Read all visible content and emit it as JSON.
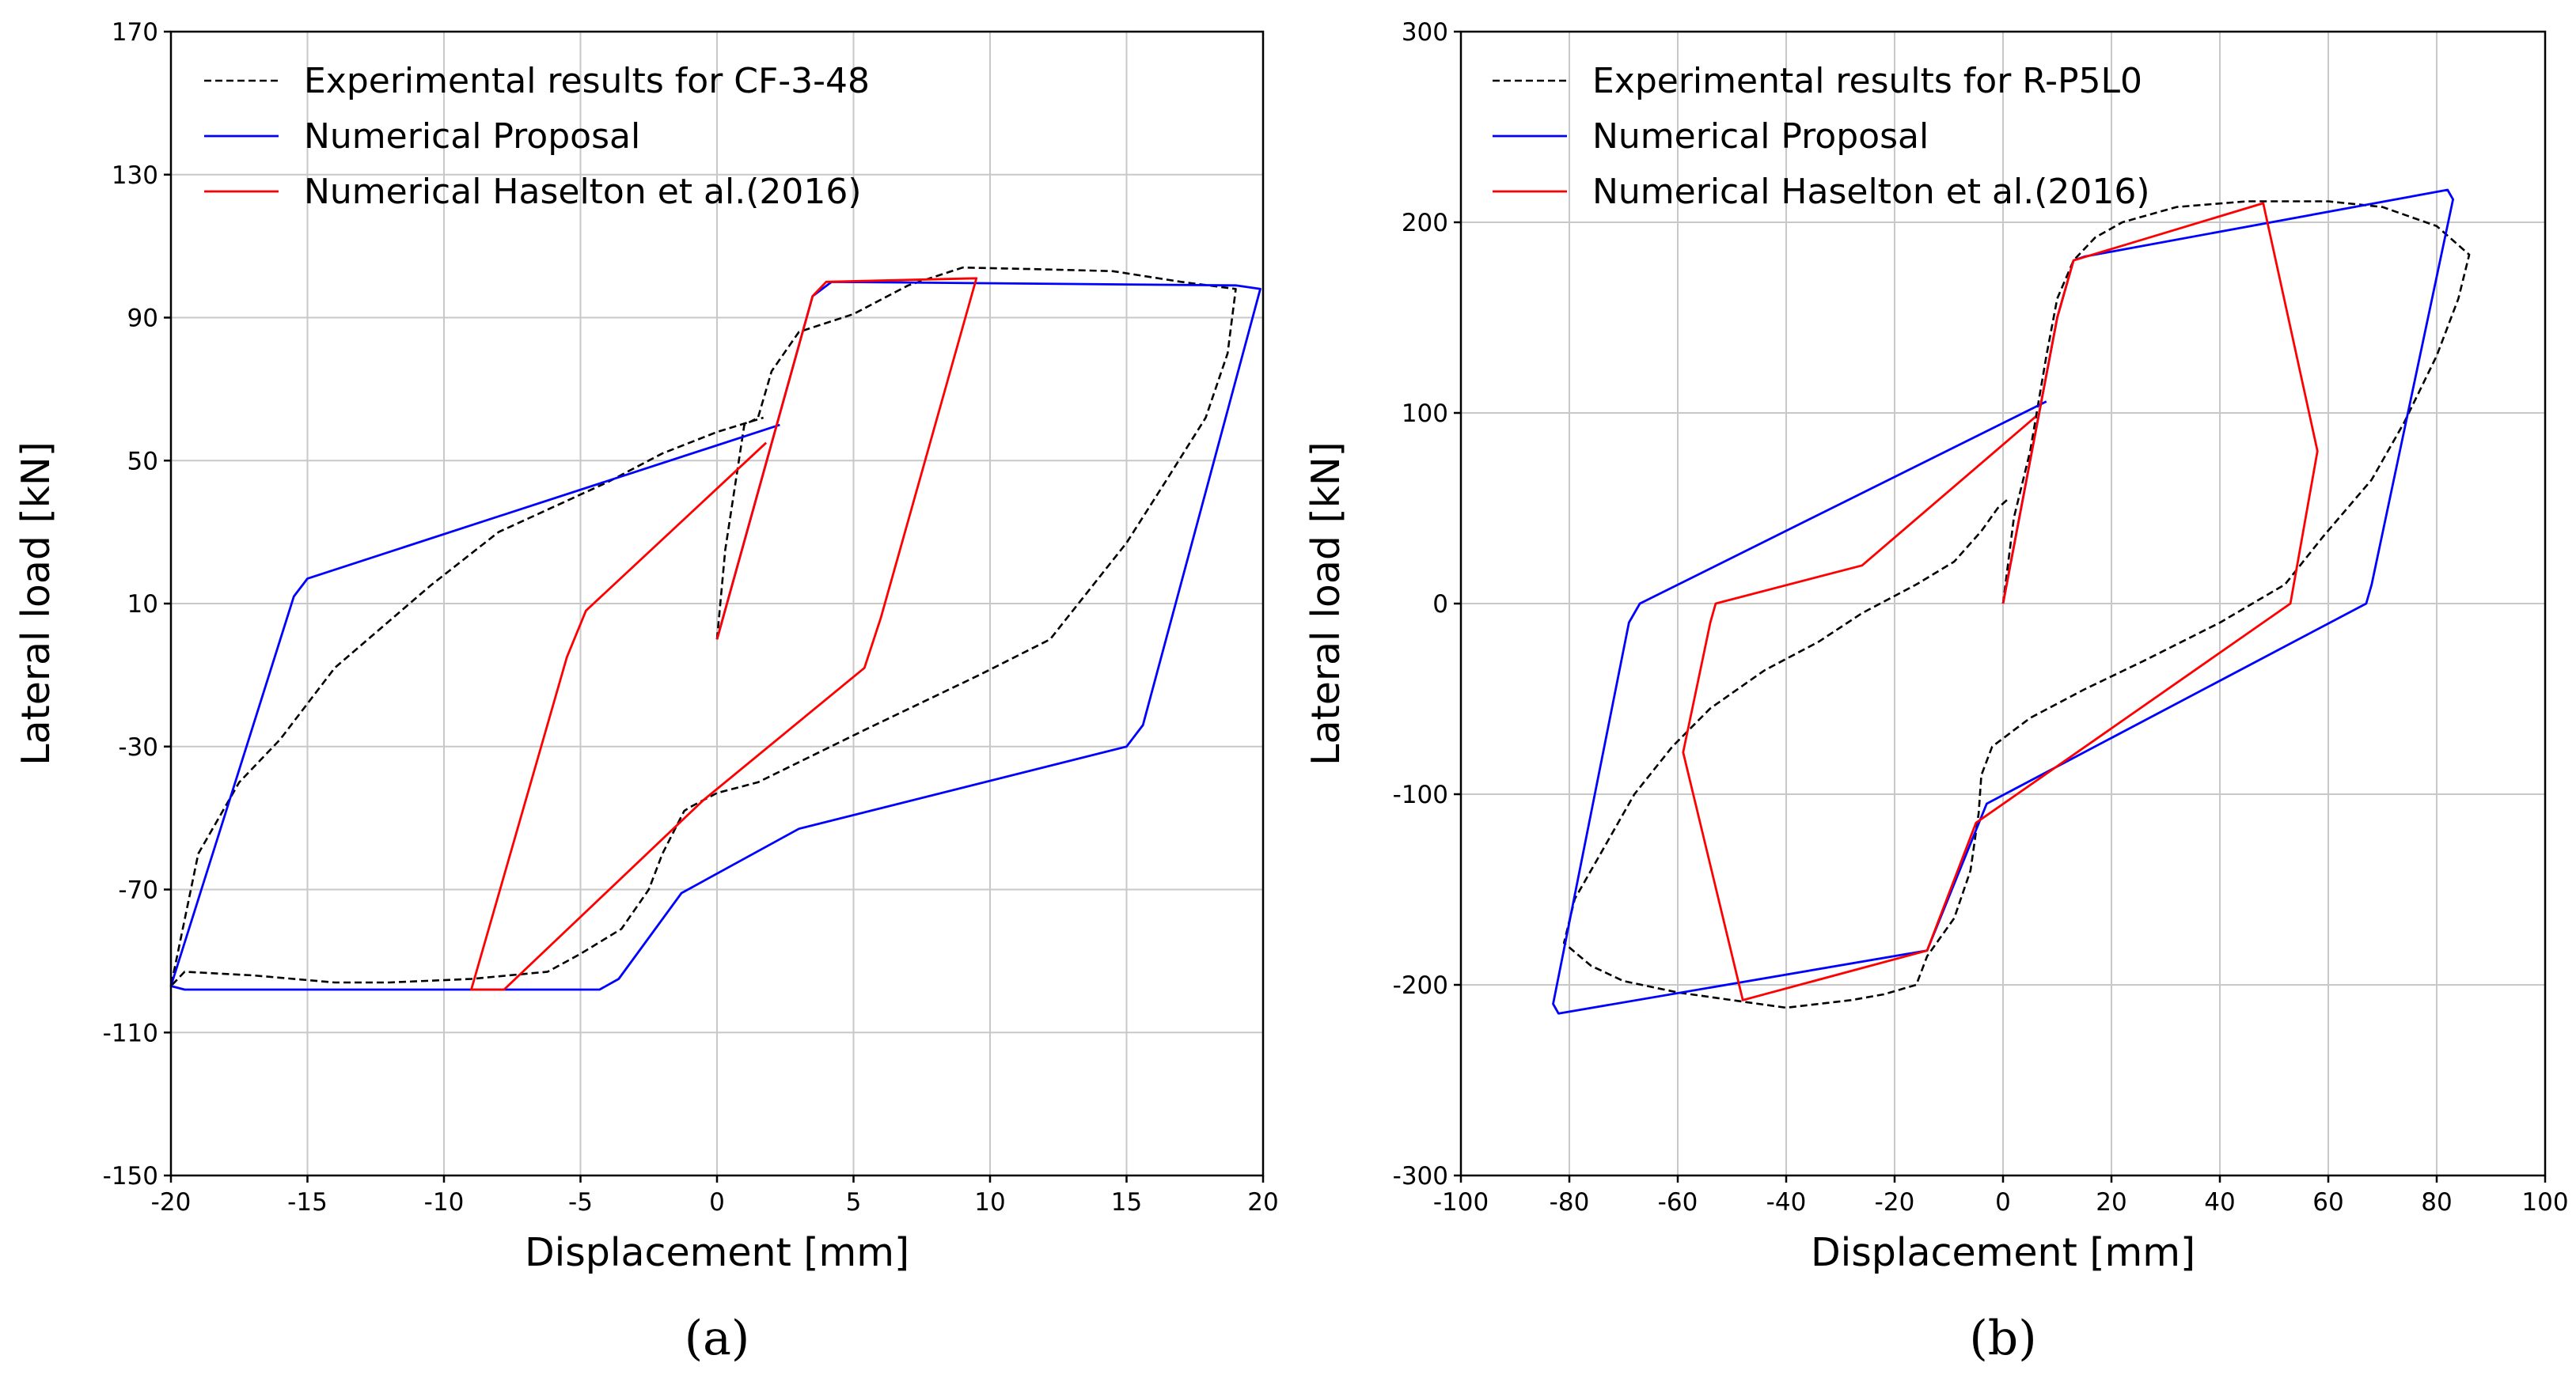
{
  "chart_data": [
    {
      "type": "line",
      "panel": "a",
      "caption": "(a)",
      "xlabel": "Displacement [mm]",
      "ylabel": "Lateral load [kN]",
      "xlim": [
        -20,
        20
      ],
      "ylim": [
        -150,
        170
      ],
      "xticks": [
        -20,
        -15,
        -10,
        -5,
        0,
        5,
        10,
        15,
        20
      ],
      "yticks": [
        -150,
        -110,
        -70,
        -30,
        10,
        50,
        90,
        130,
        170
      ],
      "xtick_labels": [
        "-20",
        "-15",
        "-10",
        "-5",
        "0",
        "5",
        "10",
        "15",
        "20"
      ],
      "ytick_labels": [
        "-150",
        "-110",
        "-70",
        "-30",
        "10",
        "50",
        "90",
        "130",
        "170"
      ],
      "grid": true,
      "legend_position": "top-left",
      "series": [
        {
          "name": "Experimental results for CF-3-48",
          "color": "#000000",
          "style": "dashed",
          "points": [
            [
              0,
              0
            ],
            [
              0.3,
              25
            ],
            [
              1,
              60
            ],
            [
              1.5,
              62
            ],
            [
              2,
              75
            ],
            [
              3,
              86
            ],
            [
              5,
              91
            ],
            [
              7,
              99
            ],
            [
              9,
              104
            ],
            [
              12,
              103.5
            ],
            [
              14.5,
              103
            ],
            [
              17,
              100
            ],
            [
              19,
              98
            ],
            [
              18.7,
              80
            ],
            [
              17.9,
              62
            ],
            [
              16.5,
              45
            ],
            [
              15,
              27
            ],
            [
              12.2,
              0
            ],
            [
              9.6,
              -10
            ],
            [
              5.5,
              -25
            ],
            [
              1.5,
              -40
            ],
            [
              0,
              -43
            ],
            [
              -1,
              -47
            ],
            [
              -1.2,
              -48
            ],
            [
              -2,
              -60
            ],
            [
              -2.5,
              -70
            ],
            [
              -3.5,
              -81
            ],
            [
              -5,
              -88
            ],
            [
              -6.2,
              -93
            ],
            [
              -9,
              -95
            ],
            [
              -12,
              -96
            ],
            [
              -14,
              -96
            ],
            [
              -17,
              -94
            ],
            [
              -19.5,
              -93
            ],
            [
              -20,
              -97
            ],
            [
              -19,
              -60
            ],
            [
              -17.5,
              -40
            ],
            [
              -16,
              -28
            ],
            [
              -14,
              -8
            ],
            [
              -10.5,
              15
            ],
            [
              -8,
              30
            ],
            [
              -4,
              44
            ],
            [
              -2,
              52
            ],
            [
              0,
              58
            ],
            [
              1.7,
              62
            ]
          ]
        },
        {
          "name": "Numerical Proposal",
          "color": "#0000ff",
          "style": "solid",
          "points": [
            [
              0,
              0
            ],
            [
              3.5,
              96
            ],
            [
              4.2,
              100
            ],
            [
              19,
              99
            ],
            [
              19.9,
              98
            ],
            [
              15.6,
              -24
            ],
            [
              15,
              -30
            ],
            [
              3,
              -53
            ],
            [
              -1.3,
              -71
            ],
            [
              -3.6,
              -95
            ],
            [
              -4.3,
              -98
            ],
            [
              -19.5,
              -98
            ],
            [
              -20,
              -97
            ],
            [
              -15.5,
              12
            ],
            [
              -15,
              17
            ],
            [
              2.3,
              60
            ]
          ]
        },
        {
          "name": "Numerical Haselton et al.(2016)",
          "color": "#ff0000",
          "style": "solid",
          "points": [
            [
              0,
              0
            ],
            [
              3.5,
              96
            ],
            [
              4,
              100
            ],
            [
              9.5,
              101
            ],
            [
              6,
              6
            ],
            [
              5.4,
              -8
            ],
            [
              -0.5,
              -45
            ],
            [
              -7.8,
              -98
            ],
            [
              -9,
              -98
            ],
            [
              -5.5,
              -5
            ],
            [
              -4.8,
              8
            ],
            [
              1.8,
              55
            ]
          ]
        }
      ]
    },
    {
      "type": "line",
      "panel": "b",
      "caption": "(b)",
      "xlabel": "Displacement [mm]",
      "ylabel": "Lateral load [kN]",
      "xlim": [
        -100,
        100
      ],
      "ylim": [
        -300,
        300
      ],
      "xticks": [
        -100,
        -80,
        -60,
        -40,
        -20,
        0,
        20,
        40,
        60,
        80,
        100
      ],
      "yticks": [
        -300,
        -200,
        -100,
        0,
        100,
        200,
        300
      ],
      "xtick_labels": [
        "-100",
        "-80",
        "-60",
        "-40",
        "-20",
        "0",
        "20",
        "40",
        "60",
        "80",
        "100"
      ],
      "ytick_labels": [
        "-300",
        "-200",
        "-100",
        "0",
        "100",
        "200",
        "300"
      ],
      "grid": true,
      "legend_position": "top-left",
      "series": [
        {
          "name": "Experimental results for R-P5L0",
          "color": "#000000",
          "style": "dashed",
          "points": [
            [
              0,
              0
            ],
            [
              2,
              45
            ],
            [
              5,
              80
            ],
            [
              8,
              130
            ],
            [
              10,
              160
            ],
            [
              13,
              180
            ],
            [
              17,
              192
            ],
            [
              22,
              200
            ],
            [
              32,
              208
            ],
            [
              45,
              211
            ],
            [
              60,
              211
            ],
            [
              70,
              208
            ],
            [
              80,
              198
            ],
            [
              86,
              183
            ],
            [
              84,
              160
            ],
            [
              80,
              130
            ],
            [
              74,
              95
            ],
            [
              68,
              65
            ],
            [
              59,
              35
            ],
            [
              52,
              10
            ],
            [
              40,
              -10
            ],
            [
              26,
              -30
            ],
            [
              15,
              -45
            ],
            [
              5,
              -60
            ],
            [
              -2,
              -75
            ],
            [
              -4,
              -90
            ],
            [
              -4.5,
              -110
            ],
            [
              -6,
              -140
            ],
            [
              -9,
              -165
            ],
            [
              -14,
              -185
            ],
            [
              -16,
              -200
            ],
            [
              -22,
              -205
            ],
            [
              -28,
              -208
            ],
            [
              -40,
              -212
            ],
            [
              -50,
              -208
            ],
            [
              -60,
              -204
            ],
            [
              -70,
              -198
            ],
            [
              -76,
              -190
            ],
            [
              -81,
              -178
            ],
            [
              -79,
              -155
            ],
            [
              -74,
              -130
            ],
            [
              -68,
              -100
            ],
            [
              -61,
              -75
            ],
            [
              -54,
              -55
            ],
            [
              -44,
              -35
            ],
            [
              -34,
              -20
            ],
            [
              -26,
              -5
            ],
            [
              -16,
              10
            ],
            [
              -9,
              22
            ],
            [
              -4,
              38
            ],
            [
              -1,
              50
            ],
            [
              1,
              55
            ]
          ]
        },
        {
          "name": "Numerical Proposal",
          "color": "#0000ff",
          "style": "solid",
          "points": [
            [
              0,
              0
            ],
            [
              10,
              150
            ],
            [
              13,
              180
            ],
            [
              15,
              182
            ],
            [
              82,
              217
            ],
            [
              83,
              212
            ],
            [
              68,
              10
            ],
            [
              67,
              0
            ],
            [
              -3,
              -105
            ],
            [
              -14,
              -182
            ],
            [
              -82,
              -215
            ],
            [
              -83,
              -210
            ],
            [
              -69,
              -10
            ],
            [
              -67,
              0
            ],
            [
              8,
              106
            ]
          ]
        },
        {
          "name": "Numerical Haselton et al.(2016)",
          "color": "#ff0000",
          "style": "solid",
          "points": [
            [
              0,
              0
            ],
            [
              10,
              150
            ],
            [
              13,
              180
            ],
            [
              48,
              210
            ],
            [
              58,
              80
            ],
            [
              53,
              0
            ],
            [
              -5,
              -115
            ],
            [
              -14,
              -182
            ],
            [
              -48,
              -208
            ],
            [
              -59,
              -78
            ],
            [
              -54,
              -10
            ],
            [
              -53,
              0
            ],
            [
              -26,
              20
            ],
            [
              6,
              98
            ]
          ]
        }
      ]
    }
  ]
}
